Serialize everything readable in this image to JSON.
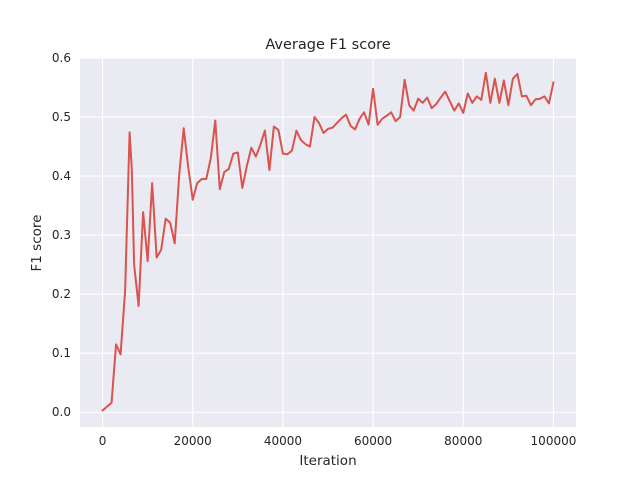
{
  "chart_data": {
    "type": "line",
    "title": "Average F1 score",
    "xlabel": "Iteration",
    "ylabel": "F1 score",
    "xlim": [
      -5000,
      105000
    ],
    "ylim": [
      -0.025,
      0.6
    ],
    "xticks": [
      0,
      20000,
      40000,
      60000,
      80000,
      100000
    ],
    "xtick_labels": [
      "0",
      "20000",
      "40000",
      "60000",
      "80000",
      "100000"
    ],
    "yticks": [
      0.0,
      0.1,
      0.2,
      0.3,
      0.4,
      0.5,
      0.6
    ],
    "ytick_labels": [
      "0.0",
      "0.1",
      "0.2",
      "0.3",
      "0.4",
      "0.5",
      "0.6"
    ],
    "grid": true,
    "background": "#eaeaf2",
    "line_color": "#d9534f",
    "series": [
      {
        "x": [
          0,
          2000,
          3000,
          4000,
          5000,
          6000,
          6500,
          7000,
          8000,
          9000,
          10000,
          11000,
          12000,
          13000,
          14000,
          15000,
          16000,
          17000,
          18000,
          19000,
          20000,
          21000,
          22000,
          23000,
          24000,
          25000,
          26000,
          27000,
          28000,
          29000,
          30000,
          31000,
          32000,
          33000,
          34000,
          35000,
          36000,
          37000,
          38000,
          39000,
          40000,
          41000,
          42000,
          43000,
          44000,
          45000,
          46000,
          47000,
          48000,
          49000,
          50000,
          51000,
          52000,
          53000,
          54000,
          55000,
          56000,
          57000,
          58000,
          59000,
          60000,
          61000,
          62000,
          63000,
          64000,
          65000,
          66000,
          67000,
          68000,
          69000,
          70000,
          71000,
          72000,
          73000,
          74000,
          75000,
          76000,
          77000,
          78000,
          79000,
          80000,
          81000,
          82000,
          83000,
          84000,
          85000,
          86000,
          87000,
          88000,
          89000,
          90000,
          91000,
          92000,
          93000,
          94000,
          95000,
          96000,
          97000,
          98000,
          99000,
          100000
        ],
        "y": [
          0.003,
          0.016,
          0.115,
          0.098,
          0.205,
          0.474,
          0.41,
          0.25,
          0.18,
          0.339,
          0.256,
          0.388,
          0.262,
          0.275,
          0.328,
          0.321,
          0.286,
          0.402,
          0.481,
          0.415,
          0.36,
          0.388,
          0.395,
          0.395,
          0.43,
          0.494,
          0.378,
          0.407,
          0.412,
          0.438,
          0.44,
          0.38,
          0.417,
          0.448,
          0.433,
          0.453,
          0.477,
          0.41,
          0.484,
          0.478,
          0.438,
          0.437,
          0.443,
          0.477,
          0.461,
          0.454,
          0.45,
          0.5,
          0.49,
          0.473,
          0.48,
          0.482,
          0.49,
          0.498,
          0.504,
          0.485,
          0.479,
          0.497,
          0.508,
          0.487,
          0.548,
          0.487,
          0.497,
          0.502,
          0.508,
          0.493,
          0.5,
          0.563,
          0.52,
          0.511,
          0.531,
          0.524,
          0.533,
          0.515,
          0.522,
          0.533,
          0.543,
          0.527,
          0.511,
          0.523,
          0.507,
          0.54,
          0.524,
          0.535,
          0.529,
          0.575,
          0.524,
          0.565,
          0.524,
          0.562,
          0.52,
          0.565,
          0.573,
          0.535,
          0.536,
          0.52,
          0.53,
          0.531,
          0.535,
          0.523,
          0.559
        ]
      }
    ]
  }
}
